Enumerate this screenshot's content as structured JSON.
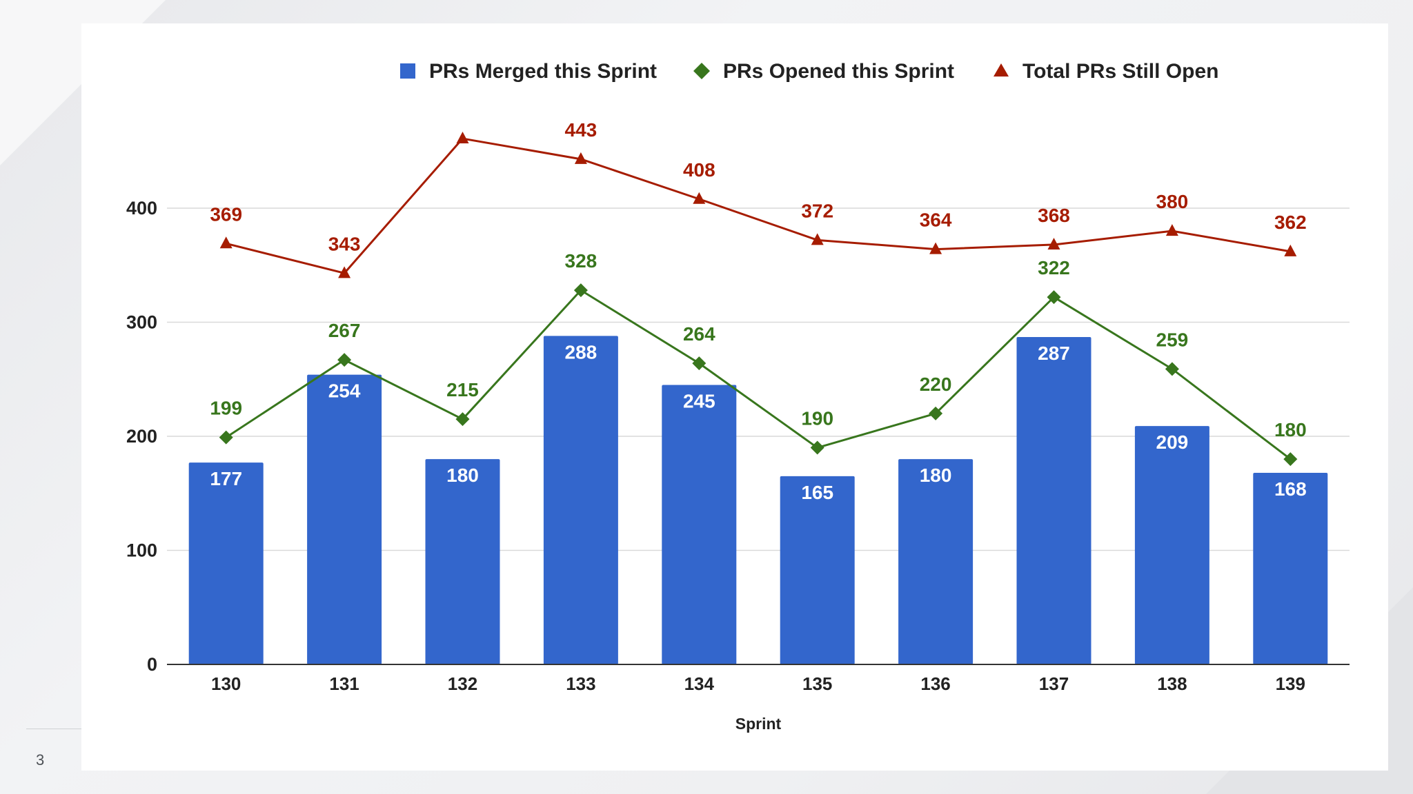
{
  "page_number": "3",
  "colors": {
    "merged": "#3366cc",
    "opened": "#38761d",
    "open_total": "#a61c00",
    "grid": "#d9d9d9",
    "axis": "#333333"
  },
  "chart_data": {
    "type": "bar",
    "categories": [
      "130",
      "131",
      "132",
      "133",
      "134",
      "135",
      "136",
      "137",
      "138",
      "139"
    ],
    "xlabel": "Sprint",
    "ylabel": "",
    "ylim": [
      0,
      480
    ],
    "yticks": [
      0,
      100,
      200,
      300,
      400
    ],
    "grid": true,
    "legend_position": "top",
    "series": [
      {
        "name": "PRs Merged this Sprint",
        "type": "bar",
        "marker": "square",
        "values": [
          177,
          254,
          180,
          288,
          245,
          165,
          180,
          287,
          209,
          168
        ]
      },
      {
        "name": "PRs Opened this Sprint",
        "type": "line",
        "marker": "diamond",
        "values": [
          199,
          267,
          215,
          328,
          264,
          190,
          220,
          322,
          259,
          180
        ]
      },
      {
        "name": "Total PRs Still Open",
        "type": "line",
        "marker": "triangle",
        "values": [
          369,
          343,
          "",
          443,
          408,
          372,
          364,
          368,
          380,
          362
        ],
        "plotted_values": [
          369,
          343,
          461,
          443,
          408,
          372,
          364,
          368,
          380,
          362
        ]
      }
    ]
  }
}
